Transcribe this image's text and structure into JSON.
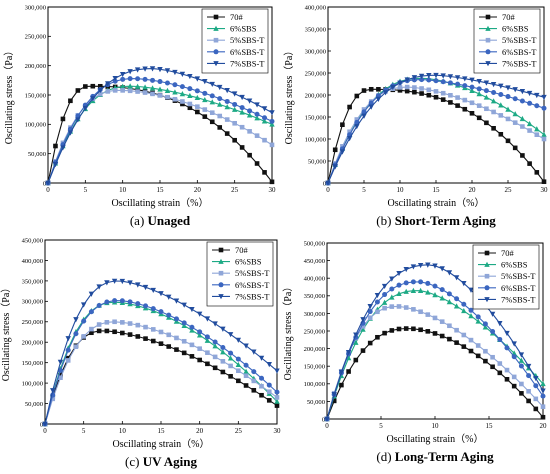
{
  "chart_data": [
    {
      "type": "line",
      "caption_label": "(a)",
      "caption_text": "Unaged",
      "xlabel": "Oscillating strain（%）",
      "ylabel": "Oscillating stress（Pa）",
      "xlim": [
        0,
        30
      ],
      "ylim": [
        0,
        300000
      ],
      "x_ticks": [
        0,
        5,
        10,
        15,
        20,
        25,
        30
      ],
      "y_ticks": [
        0,
        50000,
        100000,
        150000,
        200000,
        250000,
        300000
      ],
      "y_tick_labels": [
        "0",
        "50,000",
        "100,000",
        "150,000",
        "200,000",
        "250,000",
        "300,000"
      ],
      "legend_position": "top-right",
      "series": [
        {
          "name": "70#",
          "peak_x": 5.5,
          "peak_y": 165000,
          "end_y": 2000,
          "tail": 2.5
        },
        {
          "name": "6%SBS",
          "peak_x": 11,
          "peak_y": 165000,
          "end_y": 100000,
          "tail": 1.6
        },
        {
          "name": "5%SBS-T",
          "peak_x": 9.5,
          "peak_y": 158000,
          "end_y": 65000,
          "tail": 1.8
        },
        {
          "name": "6%SBS-T",
          "peak_x": 11.5,
          "peak_y": 178000,
          "end_y": 105000,
          "tail": 1.6
        },
        {
          "name": "7%SBS-T",
          "peak_x": 14,
          "peak_y": 195000,
          "end_y": 120000,
          "tail": 1.5
        }
      ]
    },
    {
      "type": "line",
      "caption_label": "(b)",
      "caption_text": "Short-Term Aging",
      "xlabel": "Oscillating strain（%）",
      "ylabel": "Oscillating stress（Pa）",
      "xlim": [
        0,
        30
      ],
      "ylim": [
        0,
        400000
      ],
      "x_ticks": [
        0,
        5,
        10,
        15,
        20,
        25,
        30
      ],
      "y_ticks": [
        0,
        50000,
        100000,
        150000,
        200000,
        250000,
        300000,
        350000,
        400000
      ],
      "y_tick_labels": [
        "0",
        "50,000",
        "100,000",
        "150,000",
        "200,000",
        "250,000",
        "300,000",
        "350,000",
        "400,000"
      ],
      "legend_position": "top-right",
      "series": [
        {
          "name": "70#",
          "peak_x": 6,
          "peak_y": 213000,
          "end_y": 3000,
          "tail": 2.5
        },
        {
          "name": "6%SBS",
          "peak_x": 13,
          "peak_y": 238000,
          "end_y": 110000,
          "tail": 1.7
        },
        {
          "name": "5%SBS-T",
          "peak_x": 11,
          "peak_y": 218000,
          "end_y": 100000,
          "tail": 1.6
        },
        {
          "name": "6%SBS-T",
          "peak_x": 13,
          "peak_y": 235000,
          "end_y": 170000,
          "tail": 1.5
        },
        {
          "name": "7%SBS-T",
          "peak_x": 15,
          "peak_y": 245000,
          "end_y": 195000,
          "tail": 1.4
        }
      ]
    },
    {
      "type": "line",
      "caption_label": "(c)",
      "caption_text": "UV Aging",
      "xlabel": "Oscillating strain（%）",
      "ylabel": "Oscillating stress（Pa）",
      "xlim": [
        0,
        30
      ],
      "ylim": [
        0,
        450000
      ],
      "x_ticks": [
        0,
        5,
        10,
        15,
        20,
        25,
        30
      ],
      "y_ticks": [
        0,
        50000,
        100000,
        150000,
        200000,
        250000,
        300000,
        350000,
        400000,
        450000
      ],
      "y_tick_labels": [
        "0",
        "50,000",
        "100,000",
        "150,000",
        "200,000",
        "250,000",
        "300,000",
        "350,000",
        "400,000",
        "450,000"
      ],
      "legend_position": "top-right",
      "series": [
        {
          "name": "70#",
          "peak_x": 7.5,
          "peak_y": 228000,
          "end_y": 45000,
          "tail": 1.6
        },
        {
          "name": "6%SBS",
          "peak_x": 9,
          "peak_y": 298000,
          "end_y": 55000,
          "tail": 1.7
        },
        {
          "name": "5%SBS-T",
          "peak_x": 9,
          "peak_y": 250000,
          "end_y": 65000,
          "tail": 1.6
        },
        {
          "name": "6%SBS-T",
          "peak_x": 9.5,
          "peak_y": 302000,
          "end_y": 78000,
          "tail": 1.6
        },
        {
          "name": "7%SBS-T",
          "peak_x": 9.5,
          "peak_y": 350000,
          "end_y": 130000,
          "tail": 1.5
        }
      ]
    },
    {
      "type": "line",
      "caption_label": "(d)",
      "caption_text": "Long-Term Aging",
      "xlabel": "Oscillating strain（%）",
      "ylabel": "Oscillating stress（Pa）",
      "xlim": [
        0,
        20
      ],
      "ylim": [
        0,
        500000
      ],
      "x_ticks": [
        0,
        5,
        10,
        15,
        20
      ],
      "y_ticks": [
        0,
        50000,
        100000,
        150000,
        200000,
        250000,
        300000,
        350000,
        400000,
        450000,
        500000
      ],
      "y_tick_labels": [
        "0",
        "50,000",
        "100,000",
        "150,000",
        "200,000",
        "250,000",
        "300,000",
        "350,000",
        "400,000",
        "450,000",
        "500,000"
      ],
      "legend_position": "top-right",
      "series": [
        {
          "name": "70#",
          "peak_x": 7.5,
          "peak_y": 257000,
          "end_y": 5000,
          "tail": 1.8
        },
        {
          "name": "6%SBS",
          "peak_x": 8.5,
          "peak_y": 365000,
          "end_y": 100000,
          "tail": 1.5
        },
        {
          "name": "5%SBS-T",
          "peak_x": 6.5,
          "peak_y": 320000,
          "end_y": 35000,
          "tail": 1.6
        },
        {
          "name": "6%SBS-T",
          "peak_x": 8.5,
          "peak_y": 390000,
          "end_y": 65000,
          "tail": 1.6
        },
        {
          "name": "7%SBS-T",
          "peak_x": 9.5,
          "peak_y": 438000,
          "end_y": 80000,
          "tail": 1.6
        }
      ]
    }
  ],
  "series_colors": {
    "70#": "#111111",
    "6%SBS": "#1daa85",
    "5%SBS-T": "#8fa6d8",
    "6%SBS-T": "#3b66c0",
    "7%SBS-T": "#214c9e"
  },
  "series_markers": {
    "70#": "square",
    "6%SBS": "triangle-up",
    "5%SBS-T": "square",
    "6%SBS-T": "circle",
    "7%SBS-T": "triangle-down"
  }
}
